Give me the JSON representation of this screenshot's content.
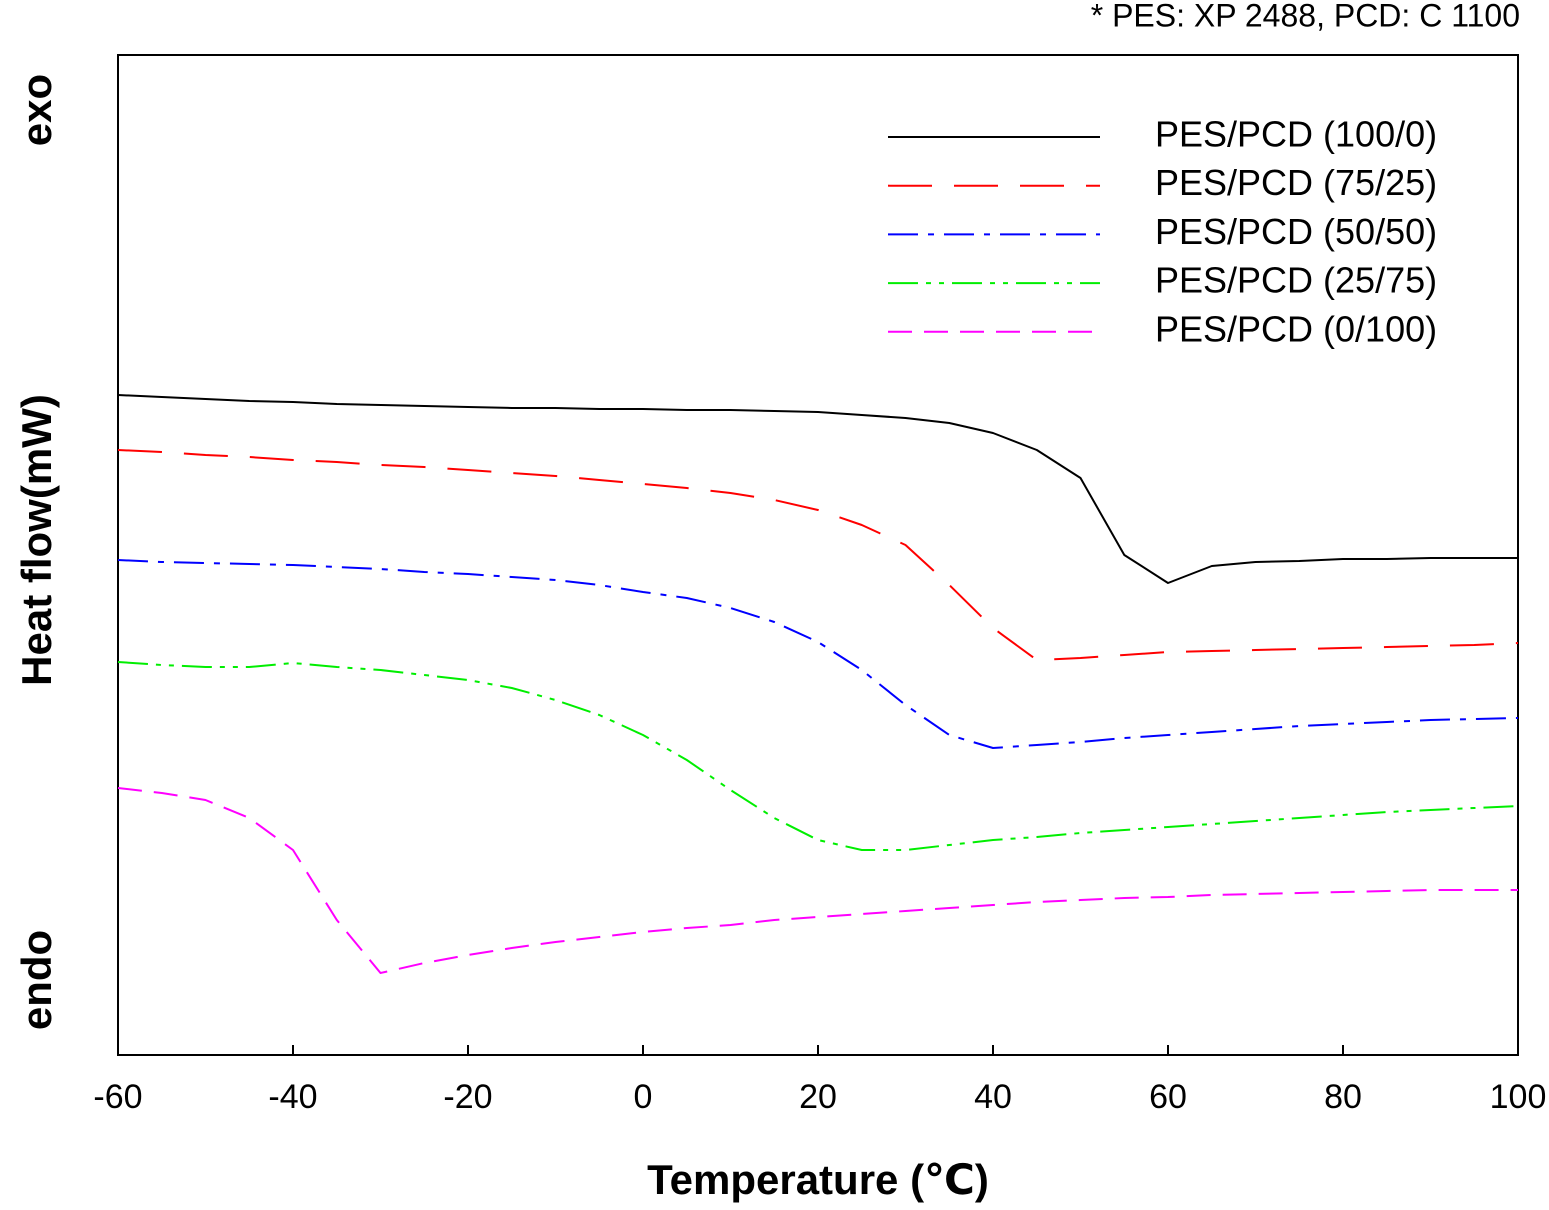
{
  "chart_data": {
    "type": "line",
    "note": "* PES: XP 2488, PCD: C 1100",
    "exo_label": "exo",
    "endo_label": "endo",
    "x_label": "Temperature (℃)",
    "y_label": "Heat flow(mW)",
    "xlim": [
      -60,
      100
    ],
    "xticks": [
      -60,
      -40,
      -20,
      0,
      20,
      40,
      60,
      80,
      100
    ],
    "ylim": [
      0,
      100
    ],
    "legend": "upper right",
    "x": [
      -60,
      -55,
      -50,
      -45,
      -40,
      -35,
      -30,
      -25,
      -20,
      -15,
      -10,
      -5,
      0,
      5,
      10,
      15,
      20,
      25,
      30,
      35,
      40,
      45,
      50,
      55,
      60,
      65,
      70,
      75,
      80,
      85,
      90,
      95,
      100
    ],
    "series": [
      {
        "name": "PES/PCD (100/0)",
        "color": "#000000",
        "values": [
          66.0,
          65.8,
          65.6,
          65.4,
          65.3,
          65.1,
          65.0,
          64.9,
          64.8,
          64.7,
          64.7,
          64.6,
          64.6,
          64.5,
          64.5,
          64.4,
          64.3,
          64.0,
          63.7,
          63.2,
          62.2,
          60.5,
          57.7,
          50.0,
          47.2,
          48.9,
          49.3,
          49.4,
          49.6,
          49.6,
          49.7,
          49.7,
          49.7
        ]
      },
      {
        "name": "PES/PCD (75/25)",
        "color": "#ff0000",
        "values": [
          60.5,
          60.3,
          60.0,
          59.8,
          59.5,
          59.3,
          59.0,
          58.8,
          58.5,
          58.2,
          57.9,
          57.5,
          57.1,
          56.7,
          56.2,
          55.5,
          54.5,
          53.0,
          51.0,
          47.0,
          42.7,
          39.5,
          39.7,
          40.0,
          40.3,
          40.4,
          40.5,
          40.6,
          40.7,
          40.8,
          40.9,
          41.0,
          41.2
        ]
      },
      {
        "name": "PES/PCD (50/50)",
        "color": "#0000ff",
        "values": [
          49.5,
          49.3,
          49.2,
          49.1,
          49.0,
          48.8,
          48.6,
          48.3,
          48.1,
          47.8,
          47.5,
          47.0,
          46.3,
          45.7,
          44.7,
          43.3,
          41.3,
          38.5,
          35.0,
          32.0,
          30.7,
          31.0,
          31.3,
          31.7,
          32.0,
          32.3,
          32.6,
          32.9,
          33.1,
          33.3,
          33.5,
          33.6,
          33.7
        ]
      },
      {
        "name": "PES/PCD (25/75)",
        "color": "#00ee00",
        "values": [
          39.3,
          39.0,
          38.8,
          38.8,
          39.2,
          38.8,
          38.5,
          38.0,
          37.5,
          36.7,
          35.5,
          34.0,
          32.0,
          29.5,
          26.5,
          23.7,
          21.5,
          20.5,
          20.5,
          21.0,
          21.5,
          21.8,
          22.2,
          22.5,
          22.8,
          23.1,
          23.4,
          23.7,
          24.0,
          24.3,
          24.5,
          24.7,
          24.9
        ]
      },
      {
        "name": "PES/PCD (0/100)",
        "color": "#ff00ff",
        "values": [
          26.7,
          26.2,
          25.5,
          23.7,
          20.5,
          13.5,
          8.2,
          9.2,
          10.0,
          10.7,
          11.3,
          11.8,
          12.3,
          12.7,
          13.0,
          13.5,
          13.8,
          14.1,
          14.4,
          14.7,
          15.0,
          15.3,
          15.5,
          15.7,
          15.8,
          16.0,
          16.1,
          16.2,
          16.3,
          16.4,
          16.5,
          16.5,
          16.5
        ]
      }
    ]
  }
}
